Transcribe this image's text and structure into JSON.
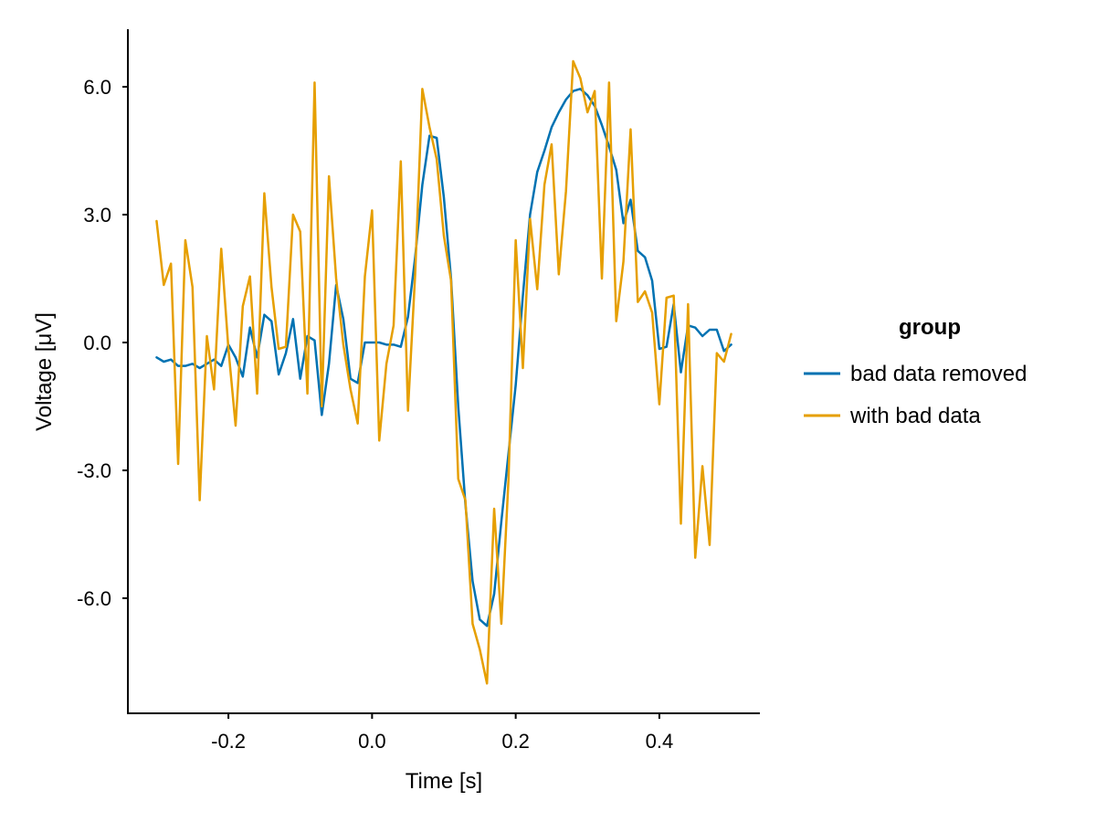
{
  "chart_data": {
    "type": "line",
    "xlabel": "Time [s]",
    "ylabel": "Voltage [μV]",
    "xlim": [
      -0.34,
      0.54
    ],
    "ylim": [
      -8.7,
      7.35
    ],
    "xticks": [
      -0.2,
      0.0,
      0.2,
      0.4
    ],
    "xtick_labels": [
      "-0.2",
      "0.0",
      "0.2",
      "0.4"
    ],
    "yticks": [
      -6.0,
      -3.0,
      0.0,
      3.0,
      6.0
    ],
    "ytick_labels": [
      "-6.0",
      "-3.0",
      "0.0",
      "3.0",
      "6.0"
    ],
    "grid": false,
    "legend": {
      "title": "group",
      "position": "right"
    },
    "x": [
      -0.3,
      -0.29,
      -0.28,
      -0.27,
      -0.26,
      -0.25,
      -0.24,
      -0.23,
      -0.22,
      -0.21,
      -0.2,
      -0.19,
      -0.18,
      -0.17,
      -0.16,
      -0.15,
      -0.14,
      -0.13,
      -0.12,
      -0.11,
      -0.1,
      -0.09,
      -0.08,
      -0.07,
      -0.06,
      -0.05,
      -0.04,
      -0.03,
      -0.02,
      -0.01,
      0.0,
      0.01,
      0.02,
      0.03,
      0.04,
      0.05,
      0.06,
      0.07,
      0.08,
      0.09,
      0.1,
      0.11,
      0.12,
      0.13,
      0.14,
      0.15,
      0.16,
      0.17,
      0.18,
      0.19,
      0.2,
      0.21,
      0.22,
      0.23,
      0.24,
      0.25,
      0.26,
      0.27,
      0.28,
      0.29,
      0.3,
      0.31,
      0.32,
      0.33,
      0.34,
      0.35,
      0.36,
      0.37,
      0.38,
      0.39,
      0.4,
      0.41,
      0.42,
      0.43,
      0.44,
      0.45,
      0.46,
      0.47,
      0.48,
      0.49,
      0.5
    ],
    "series": [
      {
        "name": "bad data removed",
        "color": "#0072B2",
        "values": [
          -0.35,
          -0.45,
          -0.4,
          -0.55,
          -0.55,
          -0.5,
          -0.6,
          -0.5,
          -0.4,
          -0.55,
          -0.05,
          -0.35,
          -0.8,
          0.35,
          -0.35,
          0.65,
          0.5,
          -0.75,
          -0.25,
          0.55,
          -0.85,
          0.15,
          0.05,
          -1.7,
          -0.5,
          1.35,
          0.55,
          -0.85,
          -0.95,
          0.0,
          0.0,
          0.0,
          -0.05,
          -0.05,
          -0.1,
          0.6,
          2.0,
          3.7,
          4.85,
          4.8,
          3.4,
          1.5,
          -1.5,
          -3.8,
          -5.6,
          -6.5,
          -6.65,
          -5.9,
          -4.2,
          -2.6,
          -1.0,
          1.1,
          3.0,
          4.0,
          4.5,
          5.05,
          5.4,
          5.7,
          5.9,
          5.95,
          5.8,
          5.55,
          5.1,
          4.6,
          4.05,
          2.8,
          3.35,
          2.15,
          2.0,
          1.45,
          -0.15,
          -0.1,
          0.9,
          -0.7,
          0.4,
          0.35,
          0.15,
          0.3,
          0.3,
          -0.2,
          -0.05
        ]
      },
      {
        "name": "with bad data",
        "color": "#E69F00",
        "values": [
          2.85,
          1.35,
          1.85,
          -2.85,
          2.4,
          1.3,
          -3.7,
          0.15,
          -1.1,
          2.2,
          -0.15,
          -1.95,
          0.85,
          1.55,
          -1.2,
          3.5,
          1.3,
          -0.15,
          -0.1,
          3.0,
          2.6,
          -1.2,
          6.1,
          -1.5,
          3.9,
          1.5,
          -0.05,
          -1.1,
          -1.9,
          1.55,
          3.1,
          -2.3,
          -0.5,
          0.4,
          4.25,
          -1.6,
          1.6,
          5.95,
          5.05,
          4.3,
          2.5,
          1.45,
          -3.2,
          -3.7,
          -6.6,
          -7.2,
          -8.0,
          -3.9,
          -6.6,
          -3.2,
          2.4,
          -0.6,
          2.9,
          1.25,
          3.7,
          4.65,
          1.6,
          3.55,
          6.6,
          6.2,
          5.4,
          5.9,
          1.5,
          6.1,
          0.5,
          1.9,
          5.0,
          0.95,
          1.2,
          0.7,
          -1.45,
          1.05,
          1.1,
          -4.25,
          0.9,
          -5.05,
          -2.9,
          -4.75,
          -0.25,
          -0.45,
          0.2
        ]
      }
    ]
  }
}
